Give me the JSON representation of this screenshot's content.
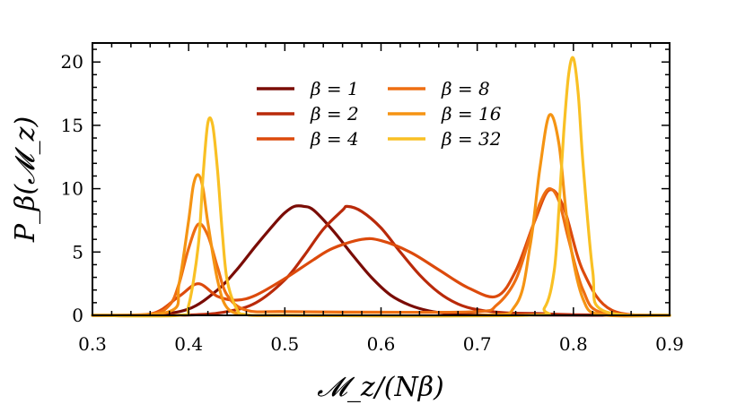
{
  "chart_data": {
    "type": "line",
    "xlabel": "𝓜_z/(Nβ)",
    "ylabel": "P_β(𝓜_z)",
    "xlim": [
      0.3,
      0.9
    ],
    "ylim": [
      0,
      21.5
    ],
    "xticks": [
      0.3,
      0.4,
      0.5,
      0.6,
      0.7,
      0.8,
      0.9
    ],
    "xtick_labels": [
      "0.3",
      "0.4",
      "0.5",
      "0.6",
      "0.7",
      "0.8",
      "0.9"
    ],
    "yticks": [
      0,
      5,
      10,
      15,
      20
    ],
    "ytick_labels": [
      "0",
      "5",
      "10",
      "15",
      "20"
    ],
    "grid": false,
    "legend_placement": "top-center",
    "series": [
      {
        "name": "β = 1",
        "color": "#7a0c06",
        "x": [
          0.3,
          0.36,
          0.4,
          0.43,
          0.45,
          0.47,
          0.49,
          0.5,
          0.51,
          0.52,
          0.53,
          0.55,
          0.57,
          0.59,
          0.61,
          0.63,
          0.65,
          0.67,
          0.7,
          0.75,
          0.9
        ],
        "y": [
          0.0,
          0.05,
          0.5,
          2.0,
          3.6,
          5.5,
          7.3,
          8.1,
          8.6,
          8.6,
          8.3,
          6.7,
          4.8,
          3.0,
          1.6,
          0.8,
          0.35,
          0.15,
          0.05,
          0.02,
          0.0
        ]
      },
      {
        "name": "β = 2",
        "color": "#b92a0a",
        "x": [
          0.3,
          0.4,
          0.44,
          0.47,
          0.5,
          0.52,
          0.54,
          0.56,
          0.565,
          0.58,
          0.6,
          0.62,
          0.64,
          0.66,
          0.68,
          0.7,
          0.73,
          0.76,
          0.8,
          0.9
        ],
        "y": [
          0.0,
          0.03,
          0.3,
          1.0,
          2.8,
          4.7,
          6.8,
          8.3,
          8.6,
          8.2,
          6.9,
          5.0,
          3.2,
          1.8,
          0.9,
          0.45,
          0.2,
          0.15,
          0.05,
          0.0
        ]
      },
      {
        "name": "β = 4",
        "color": "#dc4a0c",
        "x": [
          0.3,
          0.36,
          0.39,
          0.41,
          0.43,
          0.45,
          0.47,
          0.5,
          0.53,
          0.55,
          0.58,
          0.6,
          0.63,
          0.66,
          0.69,
          0.72,
          0.74,
          0.76,
          0.775,
          0.79,
          0.81,
          0.84,
          0.9
        ],
        "y": [
          0.0,
          0.1,
          1.5,
          2.5,
          1.5,
          1.2,
          1.6,
          2.9,
          4.4,
          5.3,
          6.0,
          5.9,
          5.0,
          3.6,
          2.2,
          1.5,
          3.5,
          7.5,
          9.9,
          8.5,
          3.5,
          0.4,
          0.0
        ]
      },
      {
        "name": "β = 8",
        "color": "#ee6e12",
        "x": [
          0.3,
          0.36,
          0.38,
          0.39,
          0.4,
          0.41,
          0.42,
          0.43,
          0.44,
          0.46,
          0.5,
          0.6,
          0.7,
          0.72,
          0.74,
          0.755,
          0.765,
          0.775,
          0.785,
          0.795,
          0.81,
          0.83,
          0.9
        ],
        "y": [
          0.0,
          0.1,
          0.8,
          2.5,
          5.3,
          7.2,
          6.3,
          3.8,
          1.6,
          0.4,
          0.3,
          0.25,
          0.3,
          0.8,
          2.8,
          6.3,
          8.8,
          10.0,
          9.0,
          6.0,
          2.0,
          0.2,
          0.0
        ]
      },
      {
        "name": "β = 16",
        "color": "#f59413",
        "x": [
          0.3,
          0.38,
          0.39,
          0.4,
          0.405,
          0.41,
          0.415,
          0.42,
          0.43,
          0.44,
          0.46,
          0.5,
          0.7,
          0.74,
          0.755,
          0.765,
          0.775,
          0.785,
          0.795,
          0.81,
          0.83,
          0.9
        ],
        "y": [
          0.0,
          0.3,
          2.5,
          7.5,
          10.3,
          11.1,
          10.0,
          7.3,
          2.8,
          0.6,
          0.05,
          0.0,
          0.0,
          0.8,
          5.5,
          11.5,
          15.8,
          13.5,
          6.5,
          1.3,
          0.05,
          0.0
        ]
      },
      {
        "name": "β = 32",
        "color": "#f9c024",
        "x": [
          0.3,
          0.39,
          0.4,
          0.41,
          0.415,
          0.42,
          0.425,
          0.43,
          0.435,
          0.44,
          0.45,
          0.46,
          0.5,
          0.75,
          0.77,
          0.78,
          0.785,
          0.79,
          0.795,
          0.8,
          0.805,
          0.81,
          0.82,
          0.83,
          0.9
        ],
        "y": [
          0.0,
          0.0,
          0.8,
          5.5,
          11.0,
          15.2,
          15.0,
          11.5,
          6.5,
          2.8,
          0.5,
          0.05,
          0.0,
          0.0,
          0.6,
          3.5,
          8.5,
          14.5,
          19.0,
          20.3,
          17.5,
          12.0,
          3.5,
          0.4,
          0.0
        ]
      }
    ]
  }
}
